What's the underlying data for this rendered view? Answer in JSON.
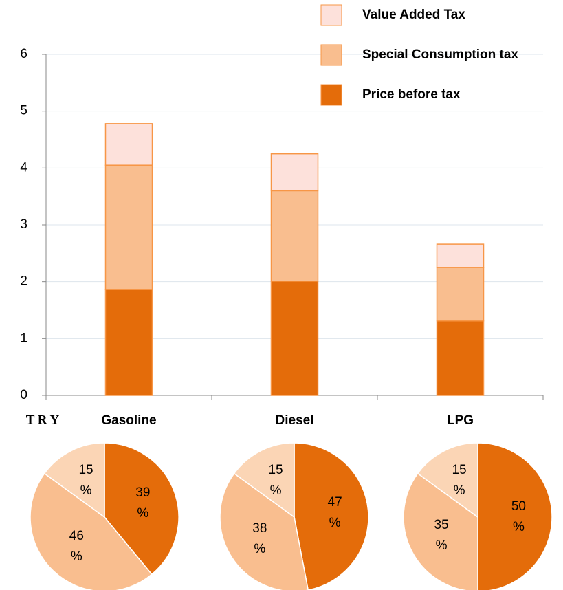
{
  "chart_data": [
    {
      "type": "stacked_bar",
      "y_label": "T R Y",
      "categories": [
        "Gasoline",
        "Diesel",
        "LPG"
      ],
      "series": [
        {
          "name": "Price before tax",
          "color": "#E46C0A",
          "values": [
            1.86,
            2.01,
            1.31
          ]
        },
        {
          "name": "Special Consumption tax",
          "color": "#F9BE8F",
          "values": [
            2.19,
            1.59,
            0.94
          ]
        },
        {
          "name": "Value Added Tax",
          "color": "#FDE1DB",
          "values": [
            0.73,
            0.65,
            0.41
          ]
        }
      ],
      "ylim": [
        0,
        6
      ],
      "yticks": [
        0,
        1,
        2,
        3,
        4,
        5,
        6
      ],
      "grid": true,
      "legend": "top-right"
    },
    {
      "type": "pie",
      "values": [
        39,
        46,
        15
      ],
      "value_labels": [
        "39 %",
        "46 %",
        "15 %"
      ],
      "colors": [
        "#E46C0A",
        "#F9BE8F",
        "#FBD5B5"
      ]
    },
    {
      "type": "pie",
      "values": [
        47,
        38,
        15
      ],
      "value_labels": [
        "47 %",
        "38 %",
        "15 %"
      ],
      "colors": [
        "#E46C0A",
        "#F9BE8F",
        "#FBD5B5"
      ]
    },
    {
      "type": "pie",
      "values": [
        50,
        35,
        15
      ],
      "value_labels": [
        "50 %",
        "35 %",
        "15 %"
      ],
      "colors": [
        "#E46C0A",
        "#F9BE8F",
        "#FBD5B5"
      ]
    }
  ]
}
